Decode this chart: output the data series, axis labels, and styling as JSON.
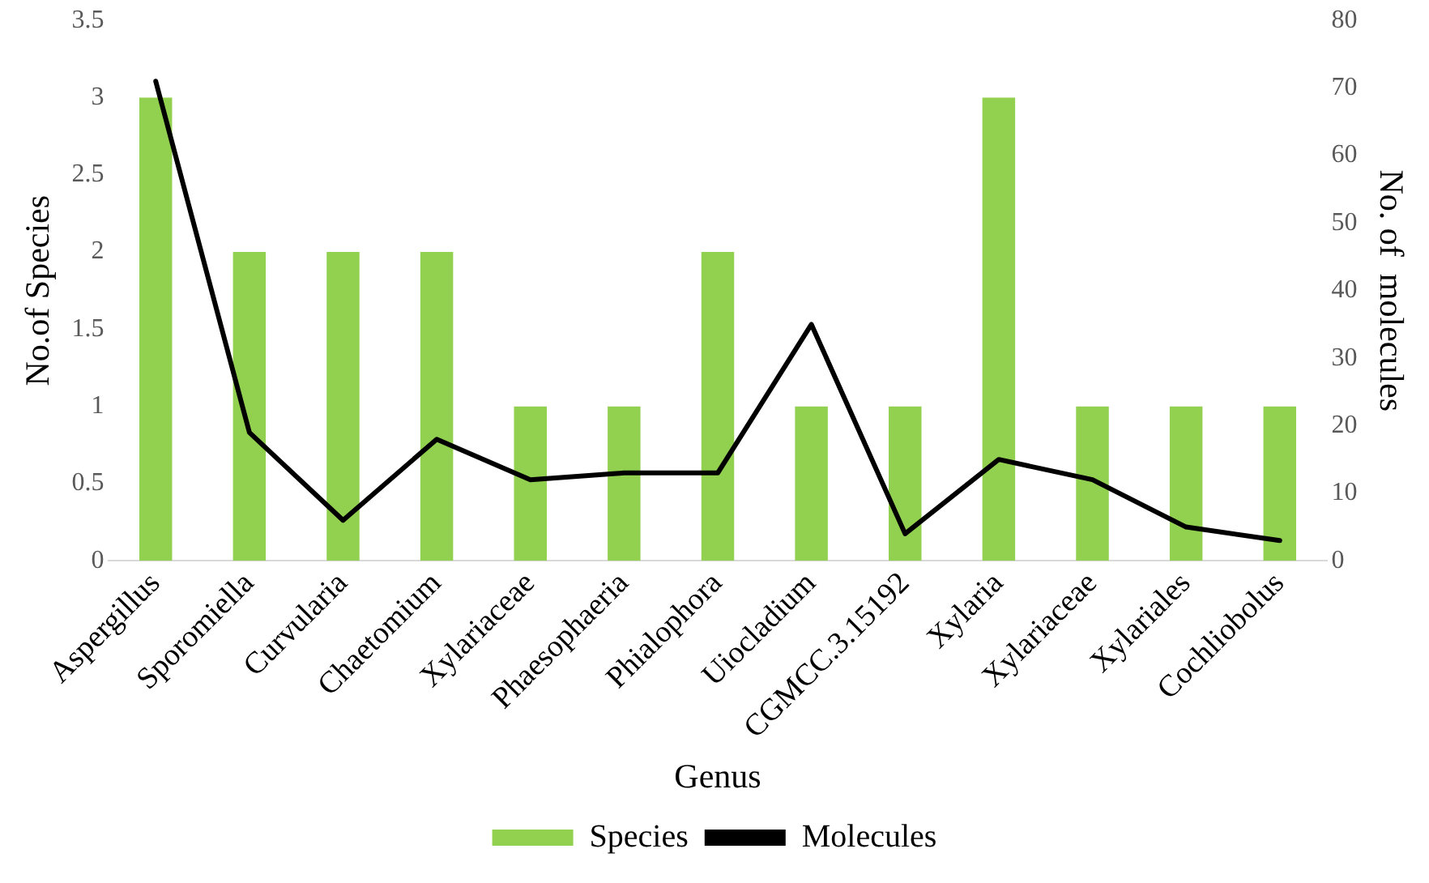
{
  "chart_data": {
    "type": "bar",
    "xlabel": "Genus",
    "ylabel": "No.of Species",
    "y2label": "No. of  molecules",
    "categories": [
      "Aspergillus",
      "Sporomiella",
      "Curvularia",
      "Chaetomium",
      "Xylariaceae",
      "Phaesophaeria",
      "Phialophora",
      "Uiocladium",
      "CGMCC.3.15192",
      "Xylaria",
      "Xylariaceae",
      "Xylariales",
      "Cochliobolus"
    ],
    "series": [
      {
        "name": "Species",
        "color": "#92d050",
        "values": [
          3,
          2,
          2,
          2,
          1,
          1,
          2,
          1,
          1,
          3,
          1,
          1,
          1
        ]
      },
      {
        "name": "Molecules",
        "type": "line",
        "axis": "y2",
        "color": "#000000",
        "values": [
          71,
          19,
          6,
          18,
          12,
          13,
          13,
          35,
          4,
          15,
          12,
          5,
          3
        ]
      }
    ],
    "ylim": [
      0,
      3.5
    ],
    "yticks": [
      0,
      0.5,
      1,
      1.5,
      2,
      2.5,
      3,
      3.5
    ],
    "y2lim": [
      0,
      80
    ],
    "y2ticks": [
      0,
      10,
      20,
      30,
      40,
      50,
      60,
      70,
      80
    ],
    "grid": false,
    "legend": "bottom",
    "marker": "none",
    "line_style": "solid"
  }
}
